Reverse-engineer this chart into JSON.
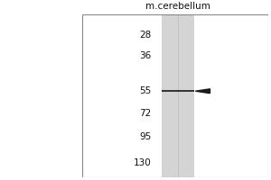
{
  "title": "m.cerebellum",
  "mw_markers": [
    130,
    95,
    72,
    55,
    36,
    28
  ],
  "band_mw": 55,
  "fig_bg": "#ffffff",
  "plot_bg": "#ffffff",
  "lane_color": "#d4d4d4",
  "band_color": "#1a1a1a",
  "marker_color": "#111111",
  "title_fontsize": 7.5,
  "marker_fontsize": 7.5,
  "border_color": "#888888"
}
